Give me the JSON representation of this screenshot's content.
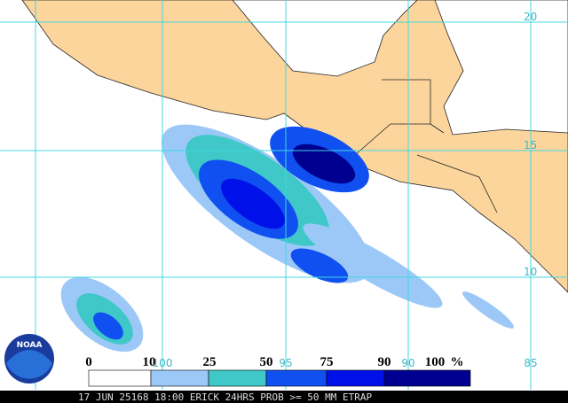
{
  "map": {
    "lat_labels": [
      "20",
      "15",
      "10"
    ],
    "lon_labels": [
      "100",
      "95",
      "90",
      "85"
    ]
  },
  "legend": {
    "values": [
      0,
      10,
      25,
      50,
      75,
      90,
      100
    ],
    "unit": "%",
    "colors": [
      "#ffffff",
      "#9cc8f8",
      "#40c8c8",
      "#1050f0",
      "#0010e8",
      "#000090"
    ]
  },
  "logo": "NOAA",
  "footer": "17 JUN 25168 18:00 ERICK 24HRS PROB >= 50 MM ETRAP"
}
